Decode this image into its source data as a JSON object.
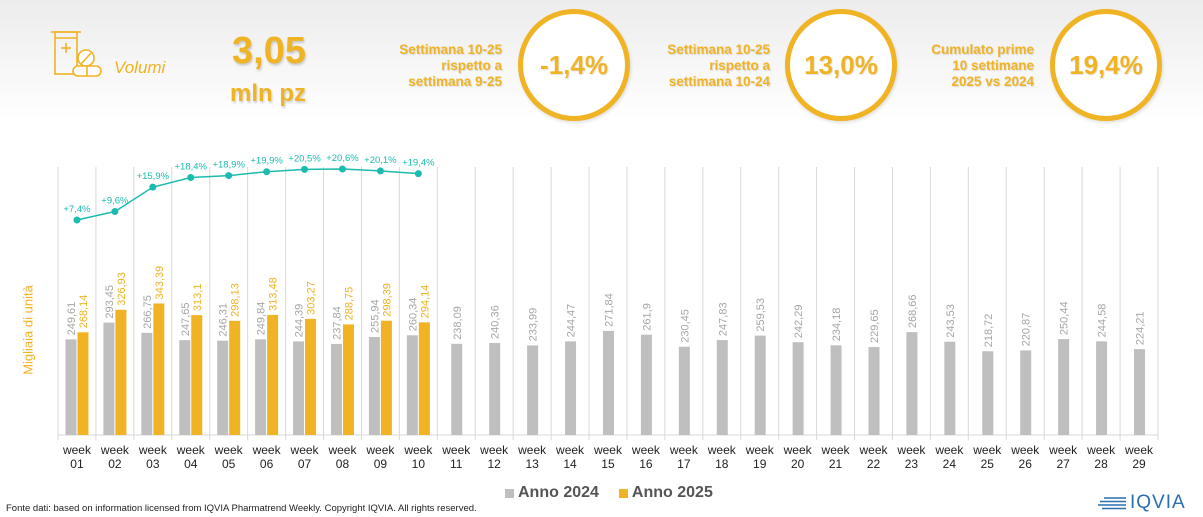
{
  "header": {
    "category_label": "Volumi",
    "total_value": "3,05",
    "total_unit": "mln pz",
    "kpis": [
      {
        "label_lines": [
          "Settimana 10-25",
          "rispetto a",
          "settimana 9-25"
        ],
        "value": "-1,4%"
      },
      {
        "label_lines": [
          "Settimana 10-25",
          "rispetto a",
          "settimana 10-24"
        ],
        "value": "13,0%"
      },
      {
        "label_lines": [
          "Cumulato prime",
          "10 settimane",
          "2025 vs 2024"
        ],
        "value": "19,4%"
      }
    ]
  },
  "colors": {
    "accent": "#F0B323",
    "series_2024": "#BFBFBF",
    "series_2025": "#F0B323",
    "growth_line": "#1BBBAE",
    "grid": "#D9D9D9"
  },
  "chart_data": {
    "type": "bar",
    "ylabel": "Migliaia di unità",
    "xlabel": "",
    "categories": [
      "week 01",
      "week 02",
      "week 03",
      "week 04",
      "week 05",
      "week 06",
      "week 07",
      "week 08",
      "week 09",
      "week 10",
      "week 11",
      "week 12",
      "week 13",
      "week 14",
      "week 15",
      "week 16",
      "week 17",
      "week 18",
      "week 19",
      "week 20",
      "week 21",
      "week 22",
      "week 23",
      "week 24",
      "week 25",
      "week 26",
      "week 27",
      "week 28",
      "week 29"
    ],
    "series": [
      {
        "name": "Anno 2024",
        "values": [
          249.61,
          293.45,
          266.75,
          247.65,
          246.31,
          249.84,
          244.39,
          237.84,
          255.94,
          260.34,
          238.09,
          240.36,
          233.99,
          244.47,
          271.84,
          261.9,
          230.45,
          247.83,
          259.53,
          242.29,
          234.18,
          229.65,
          268.66,
          243.53,
          218.72,
          220.87,
          250.44,
          244.58,
          224.21
        ],
        "labels": [
          "249,61",
          "293,45",
          "266,75",
          "247,65",
          "246,31",
          "249,84",
          "244,39",
          "237,84",
          "255,94",
          "260,34",
          "238,09",
          "240,36",
          "233,99",
          "244,47",
          "271,84",
          "261,9",
          "230,45",
          "247,83",
          "259,53",
          "242,29",
          "234,18",
          "229,65",
          "268,66",
          "243,53",
          "218,72",
          "220,87",
          "250,44",
          "244,58",
          "224,21"
        ]
      },
      {
        "name": "Anno 2025",
        "values": [
          268.14,
          326.93,
          343.39,
          313.1,
          298.13,
          313.48,
          303.27,
          288.75,
          298.39,
          294.14
        ],
        "labels": [
          "268,14",
          "326,93",
          "343,39",
          "313,1",
          "298,13",
          "313,48",
          "303,27",
          "288,75",
          "298,39",
          "294,14"
        ]
      }
    ],
    "growth_line": {
      "name": "Cumulato 2025 vs 2024",
      "values": [
        7.4,
        9.6,
        15.9,
        18.4,
        18.9,
        19.9,
        20.5,
        20.6,
        20.1,
        19.4
      ],
      "labels": [
        "+7,4%",
        "+9,6%",
        "+15,9%",
        "+18,4%",
        "+18,9%",
        "+19,9%",
        "+20,5%",
        "+20,6%",
        "+20,1%",
        "+19,4%"
      ]
    },
    "ylim": [
      0,
      700
    ],
    "grid": "vertical category separators",
    "legend": "bottom-center"
  },
  "legend": {
    "items": [
      "Anno 2024",
      "Anno 2025"
    ]
  },
  "footer": {
    "source": "Fonte dati: based on information licensed from IQVIA Pharmatrend Weekly. Copyright IQVIA. All rights reserved."
  },
  "logo": {
    "text": "IQVIA"
  }
}
